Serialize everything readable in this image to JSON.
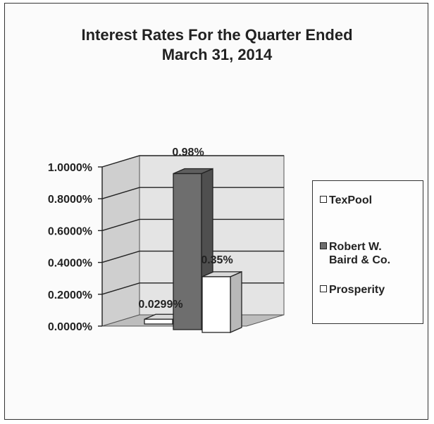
{
  "chart_data": {
    "type": "bar",
    "title_lines": [
      "Interest Rates For the Quarter Ended",
      "March 31, 2014"
    ],
    "categories": [
      "TexPool",
      "Robert W. Baird & Co.",
      "Prosperity"
    ],
    "legend_lines": [
      [
        "TexPool"
      ],
      [
        "Robert W.",
        "Baird & Co."
      ],
      [
        "Prosperity"
      ]
    ],
    "values": [
      0.0299,
      0.98,
      0.35
    ],
    "data_labels": [
      "0.0299%",
      "0.98%",
      "0.35%"
    ],
    "ylim": [
      0,
      1.0
    ],
    "yticks": [
      0,
      0.2,
      0.4,
      0.6,
      0.8,
      1.0
    ],
    "ytick_labels": [
      "0.0000%",
      "0.2000%",
      "0.4000%",
      "0.6000%",
      "0.8000%",
      "1.0000%"
    ],
    "grid": true,
    "legend_position": "right",
    "style": "3d-bar",
    "colors": [
      "#ffffff",
      "#6e6e6e",
      "#ffffff"
    ],
    "wall_color": "#e4e4e4",
    "floor_color": "#bdbdbd"
  }
}
